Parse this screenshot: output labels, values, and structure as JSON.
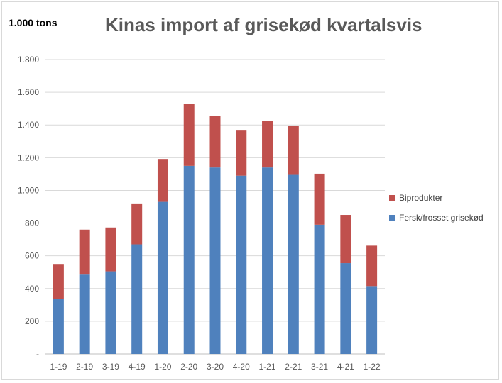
{
  "chart_data": {
    "type": "bar",
    "stacked": true,
    "title": "Kinas import af grisekød kvartalsvis",
    "unit_label": "1.000 tons",
    "categories": [
      "1-19",
      "2-19",
      "3-19",
      "4-19",
      "1-20",
      "2-20",
      "3-20",
      "4-20",
      "1-21",
      "2-21",
      "3-21",
      "4-21",
      "1-22"
    ],
    "series": [
      {
        "name": "Fersk/frosset grisekød",
        "color": "#4f81bd",
        "values": [
          335,
          485,
          505,
          670,
          930,
          1150,
          1140,
          1090,
          1140,
          1095,
          790,
          555,
          415
        ]
      },
      {
        "name": "Biprodukter",
        "color": "#c0504d",
        "values": [
          215,
          275,
          268,
          250,
          262,
          380,
          315,
          280,
          287,
          298,
          312,
          295,
          247
        ]
      }
    ],
    "y_ticks": [
      "-",
      "200",
      "400",
      "600",
      "800",
      "1.000",
      "1.200",
      "1.400",
      "1.600",
      "1.800"
    ],
    "ylim": [
      0,
      1800
    ],
    "grid": true,
    "legend_position": "right"
  }
}
